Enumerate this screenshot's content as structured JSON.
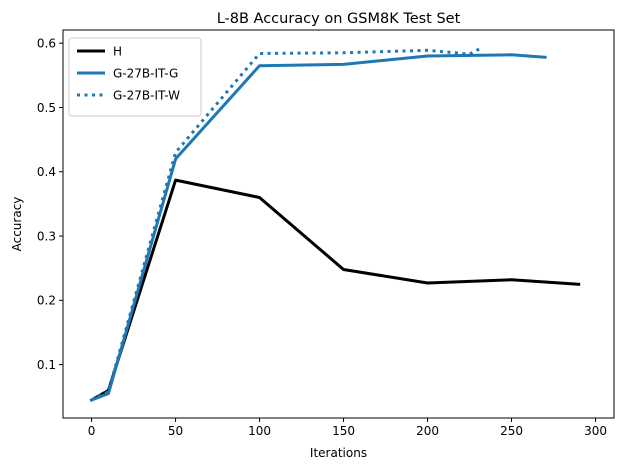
{
  "chart_data": {
    "type": "line",
    "title": "L-8B Accuracy on GSM8K Test Set",
    "xlabel": "Iterations",
    "ylabel": "Accuracy",
    "xlim": [
      -17,
      311
    ],
    "ylim": [
      0.017,
      0.6205
    ],
    "xticks": [
      0,
      50,
      100,
      150,
      200,
      250,
      300
    ],
    "yticks": [
      0.1,
      0.2,
      0.3,
      0.4,
      0.5,
      0.6
    ],
    "xtick_labels": [
      "0",
      "50",
      "100",
      "150",
      "200",
      "250",
      "300"
    ],
    "ytick_labels": [
      "0.1",
      "0.2",
      "0.3",
      "0.4",
      "0.5",
      "0.6"
    ],
    "grid": false,
    "legend_position": "upper-left",
    "series": [
      {
        "name": "H",
        "color": "#000000",
        "style": "solid",
        "x": [
          0,
          10,
          50,
          100,
          150,
          200,
          250,
          290
        ],
        "y": [
          0.045,
          0.06,
          0.387,
          0.36,
          0.248,
          0.227,
          0.232,
          0.225
        ]
      },
      {
        "name": "G-27B-IT-G",
        "color": "#1f77b4",
        "style": "solid",
        "x": [
          0,
          10,
          50,
          100,
          150,
          200,
          250,
          270
        ],
        "y": [
          0.045,
          0.055,
          0.42,
          0.565,
          0.567,
          0.58,
          0.582,
          0.578
        ]
      },
      {
        "name": "G-27B-IT-W",
        "color": "#1f77b4",
        "style": "dotted",
        "x": [
          0,
          10,
          50,
          100,
          150,
          200,
          225,
          233
        ],
        "y": [
          0.045,
          0.058,
          0.43,
          0.584,
          0.585,
          0.589,
          0.583,
          0.594
        ]
      }
    ]
  }
}
